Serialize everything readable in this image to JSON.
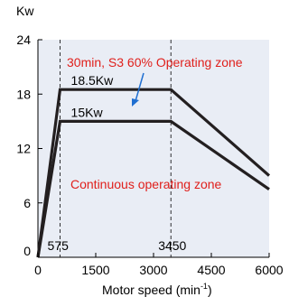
{
  "chart_data": {
    "type": "line",
    "title": "",
    "xlabel": "Motor speed (min",
    "xlabel_sup": "-1",
    "xlabel_close": ")",
    "ylabel": "Kw",
    "xlim": [
      0,
      6000
    ],
    "ylim": [
      0,
      24
    ],
    "x_ticks": [
      0,
      1500,
      3000,
      4500,
      6000
    ],
    "y_ticks": [
      0,
      6,
      12,
      18,
      24
    ],
    "grid": "dotted-vertical",
    "series": [
      {
        "name": "",
        "label": "18.5Kw",
        "x": [
          0,
          575,
          3450,
          6000
        ],
        "y": [
          0,
          18.5,
          18.5,
          9.0
        ]
      },
      {
        "name": "",
        "label": "15Kw",
        "x": [
          0,
          575,
          3450,
          6000
        ],
        "y": [
          0,
          15,
          15,
          7.5
        ]
      }
    ],
    "markers": [
      {
        "x": 575,
        "label": "575"
      },
      {
        "x": 3450,
        "label": "3450"
      }
    ],
    "annotations": {
      "upper_zone": "30min, S3 60% Operating zone",
      "lower_zone": "Continuous operating zone"
    },
    "colors": {
      "plot_bg": "#e9edf5",
      "line": "#231f20",
      "annotation": "#e0201c",
      "arrow": "#1f6fd1",
      "grid": "#000000"
    }
  }
}
